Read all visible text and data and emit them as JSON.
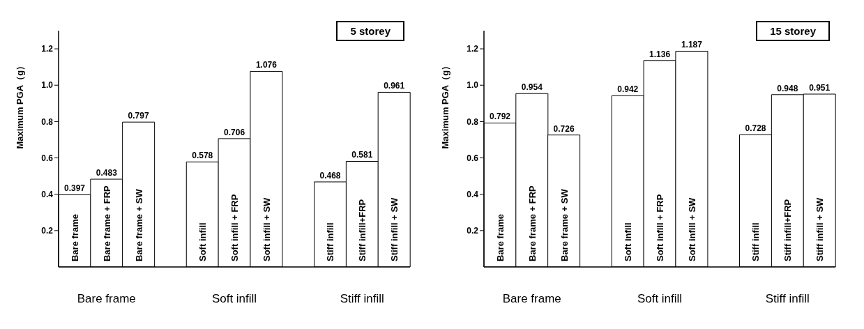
{
  "chart_data": [
    {
      "type": "bar",
      "title": "5 storey",
      "ylabel": "Maximum PGA（g）",
      "categories": [
        "Bare frame",
        "Bare frame + FRP",
        "Bare frame + SW",
        null,
        "Soft infill",
        "Soft infill + FRP",
        "Soft infill + SW",
        null,
        "Stiff infill",
        "Stiff infill+FRP",
        "Stiff infill + SW"
      ],
      "values": [
        0.397,
        0.483,
        0.797,
        null,
        0.578,
        0.706,
        1.076,
        null,
        0.468,
        0.581,
        0.961
      ],
      "color": "#ffffff",
      "data_labels": true,
      "ylim": [
        0,
        1.3
      ],
      "yticks": [
        0.2,
        0.4,
        0.6,
        0.8,
        {
          "value": 1,
          "label": "1.0"
        },
        1.2
      ],
      "annotations": [
        "Bare frame",
        "Soft infill",
        "Stiff infill"
      ]
    },
    {
      "type": "bar",
      "title": "15 storey",
      "ylabel": "Maximum PGA（g）",
      "categories": [
        "Bare frame",
        "Bare frame + FRP",
        "Bare frame + SW",
        null,
        "Soft infill",
        "Soft infill + FRP",
        "Soft infill + SW",
        null,
        "Stiff infill",
        "Stiff infill+FRP",
        "Stiff infill + SW"
      ],
      "values": [
        0.792,
        0.954,
        0.726,
        null,
        0.942,
        1.136,
        1.187,
        null,
        0.728,
        0.948,
        0.951
      ],
      "color": "#ffffff",
      "data_labels": true,
      "ylim": [
        0,
        1.3
      ],
      "yticks": [
        0.2,
        0.4,
        0.6,
        0.8,
        {
          "value": 1,
          "label": "1.0"
        },
        1.2
      ],
      "annotations": [
        "Bare frame",
        "Soft infill",
        "Stiff infill"
      ]
    }
  ]
}
